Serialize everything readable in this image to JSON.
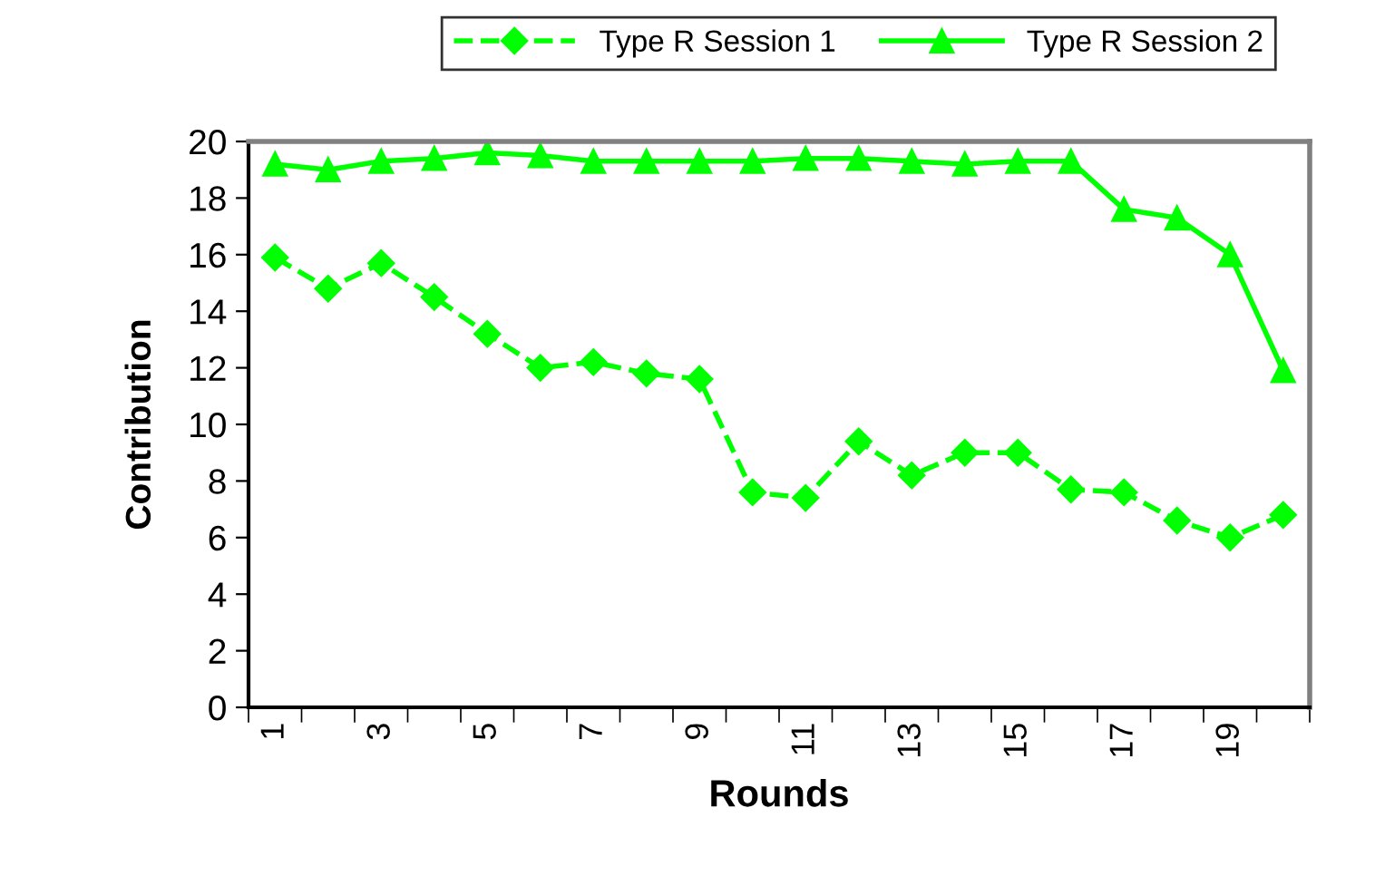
{
  "chart_data": {
    "type": "line",
    "xlabel": "Rounds",
    "ylabel": "Contribution",
    "categories": [
      "1",
      null,
      "3",
      null,
      "5",
      null,
      "7",
      null,
      "9",
      null,
      "11",
      null,
      "13",
      null,
      "15",
      null,
      "17",
      null,
      "19",
      null
    ],
    "series": [
      {
        "name": "Type R Session 1",
        "color": "#00ff00",
        "marker": "diamond",
        "line_style": "dashed",
        "values": [
          15.9,
          14.8,
          15.7,
          14.5,
          13.2,
          12.0,
          12.2,
          11.8,
          11.6,
          7.6,
          7.4,
          9.4,
          8.2,
          9.0,
          9.0,
          7.7,
          7.6,
          6.6,
          6.0,
          6.8
        ]
      },
      {
        "name": "Type R Session 2",
        "color": "#00ff00",
        "marker": "triangle",
        "line_style": "solid",
        "values": [
          19.2,
          19.0,
          19.3,
          19.4,
          19.6,
          19.5,
          19.3,
          19.3,
          19.3,
          19.3,
          19.4,
          19.4,
          19.3,
          19.2,
          19.3,
          19.3,
          17.6,
          17.3,
          16.0,
          11.9
        ]
      }
    ],
    "ylim": [
      0,
      20
    ],
    "yticks": [
      0,
      2,
      4,
      6,
      8,
      10,
      12,
      14,
      16,
      18,
      20
    ],
    "grid": false,
    "legend": "top"
  }
}
